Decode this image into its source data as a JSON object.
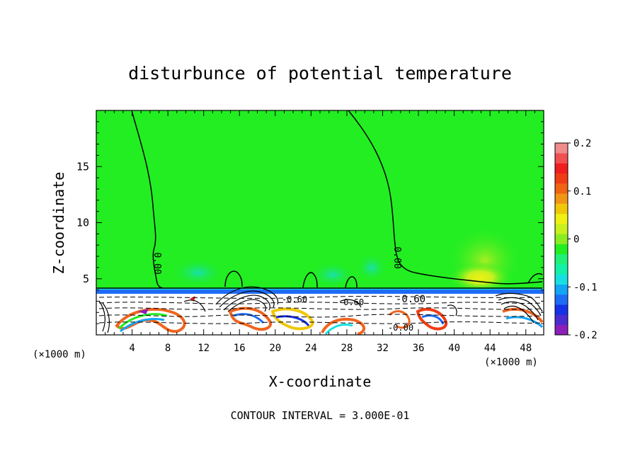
{
  "chart_data": {
    "type": "heatmap",
    "title": "disturbunce of potential temperature",
    "xlabel": "X-coordinate",
    "ylabel": "Z-coordinate",
    "x_unit": "(×1000 m)",
    "xlim": [
      0,
      50
    ],
    "ylim": [
      0,
      20
    ],
    "x_ticks": [
      4,
      8,
      12,
      16,
      20,
      24,
      28,
      32,
      36,
      40,
      44,
      48
    ],
    "y_ticks": [
      5,
      10,
      15
    ],
    "colorbar": {
      "range": [
        -0.2,
        0.2
      ],
      "tick_values": [
        0.2,
        0.1,
        0,
        -0.1,
        -0.2
      ],
      "tick_labels": [
        "0.2",
        "0.1",
        "0",
        "-0.1",
        "-0.2"
      ],
      "colors": [
        "#8c1fb8",
        "#4b2cd0",
        "#1432e6",
        "#1e6cf5",
        "#12a6f5",
        "#18e0e0",
        "#14f0a8",
        "#1ef07a",
        "#22ee22",
        "#8cec22",
        "#c8f01e",
        "#f0f014",
        "#f0c80a",
        "#f09614",
        "#f06414",
        "#f03c14",
        "#f01e1e",
        "#f05050",
        "#f08c8c"
      ]
    },
    "contour_interval": "CONTOUR INTERVAL = 3.000E-01",
    "contour_labels": [
      {
        "text": "0.00",
        "x": 6.5,
        "y": 6.5
      },
      {
        "text": "0.00",
        "x": 33,
        "y": 7.7
      },
      {
        "text": "-0.60",
        "x": 35,
        "y": 3.3
      },
      {
        "text": "-0.60",
        "x": 22.2,
        "y": 3.3
      },
      {
        "text": "-0.60",
        "x": 28.5,
        "y": 3.0
      },
      {
        "text": "-0.00",
        "x": 34,
        "y": 0.7
      }
    ]
  }
}
